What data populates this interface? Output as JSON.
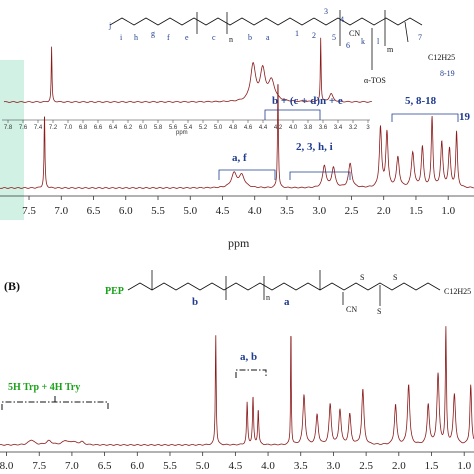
{
  "chart_data": [
    {
      "type": "line",
      "panel": "A",
      "xlabel": "ppm",
      "xlim": [
        7.95,
        0.6
      ],
      "x_ticks": [
        "7.5",
        "7.0",
        "6.5",
        "6.0",
        "5.5",
        "5.0",
        "4.5",
        "4.0",
        "3.5",
        "3.0",
        "2.5",
        "2.0",
        "1.5",
        "1.0"
      ],
      "inset_ticks": [
        "7.8",
        "7.6",
        "7.4",
        "7.2",
        "7.0",
        "6.8",
        "6.6",
        "6.4",
        "6.2",
        "6.0",
        "5.8",
        "5.6",
        "5.4",
        "5.2",
        "5.0",
        "4.8",
        "4.6",
        "4.4",
        "4.2",
        "4.0",
        "3.8",
        "3.6",
        "3.4",
        "3.2",
        "3"
      ],
      "inset_xlabel": "ppm",
      "annotations": [
        "a, f",
        "b + (c + d)n + e",
        "2, 3, h, i",
        "5, 8-18",
        "19"
      ],
      "chemical_labels": [
        "j",
        "i",
        "h",
        "g",
        "f",
        "e",
        "c",
        "n",
        "b",
        "a",
        "1",
        "2",
        "3",
        "4",
        "5",
        "6",
        "k",
        "l",
        "m",
        "7",
        "8-19",
        "CN",
        "C12H25",
        "α-TOS"
      ],
      "peaks_ppm": [
        7.26,
        4.3,
        4.2,
        3.64,
        2.9,
        2.78,
        2.52,
        2.0,
        1.85,
        1.6,
        1.4,
        1.25,
        1.1,
        0.88
      ]
    },
    {
      "type": "line",
      "panel": "B",
      "xlim": [
        8.1,
        0.85
      ],
      "x_ticks": [
        "8.0",
        "7.5",
        "7.0",
        "6.5",
        "6.0",
        "5.5",
        "5.0",
        "4.5",
        "4.0",
        "3.5",
        "3.0",
        "2.5",
        "2.0",
        "1.5",
        "1.0"
      ],
      "annotations": [
        "5H Trp + 4H Try",
        "a, b"
      ],
      "chemical_labels": [
        "PEP",
        "b",
        "n",
        "a",
        "CN",
        "S",
        "S",
        "S",
        "C12H25"
      ],
      "peaks_ppm": [
        4.8,
        4.3,
        4.22,
        3.65,
        3.4,
        3.1,
        2.9,
        2.8,
        2.5,
        1.8,
        1.5,
        1.28,
        0.9
      ]
    }
  ],
  "labels": {
    "panel_b": "(B)"
  }
}
